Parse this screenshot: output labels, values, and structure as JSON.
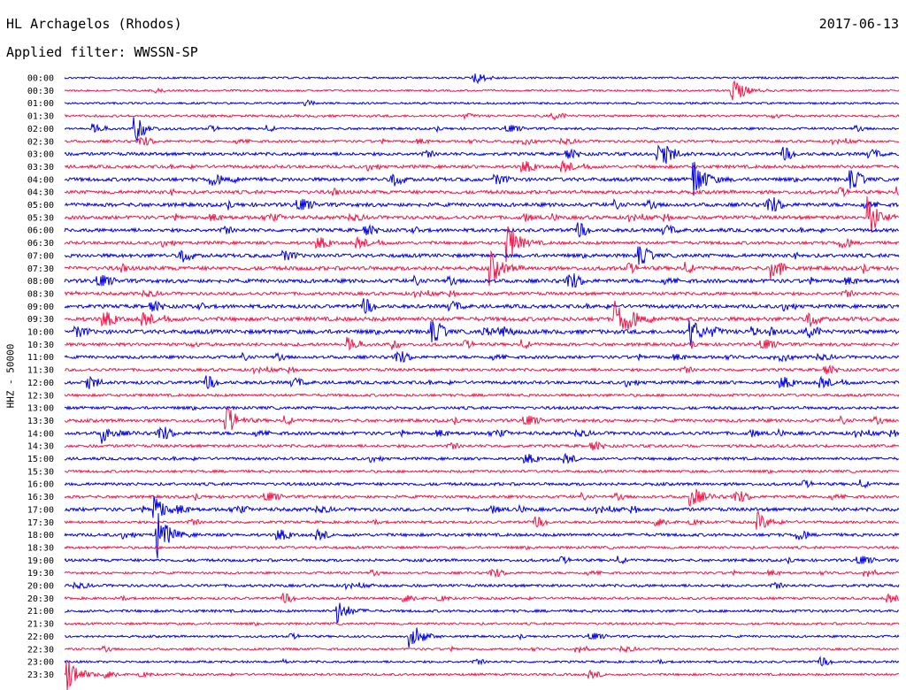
{
  "header": {
    "title": "HL Archagelos (Rhodos)",
    "date": "2017-06-13",
    "filter": "Applied filter: WWSSN-SP"
  },
  "chart_data": {
    "type": "line",
    "title": "HL Archagelos (Rhodos)",
    "ylabel": "HHZ - 50000",
    "colors": [
      "#0000e6",
      "#f0194a"
    ],
    "time_labels": [
      "00:00",
      "00:30",
      "01:00",
      "01:30",
      "02:00",
      "02:30",
      "03:00",
      "03:30",
      "04:00",
      "04:30",
      "05:00",
      "05:30",
      "06:00",
      "06:30",
      "07:00",
      "07:30",
      "08:00",
      "08:30",
      "09:00",
      "09:30",
      "10:00",
      "10:30",
      "11:00",
      "11:30",
      "12:00",
      "12:30",
      "13:00",
      "13:30",
      "14:00",
      "14:30",
      "15:00",
      "15:30",
      "16:00",
      "16:30",
      "17:00",
      "17:30",
      "18:00",
      "18:30",
      "19:00",
      "19:30",
      "20:00",
      "20:30",
      "21:00",
      "21:30",
      "22:00",
      "22:30",
      "23:00",
      "23:30"
    ],
    "trace_minutes": 30,
    "activity": [
      0.15,
      0.15,
      0.2,
      0.3,
      0.3,
      0.35,
      0.6,
      0.6,
      0.75,
      0.7,
      0.8,
      0.75,
      0.7,
      0.6,
      0.75,
      0.85,
      0.8,
      0.6,
      0.75,
      0.9,
      0.9,
      0.6,
      0.55,
      0.5,
      0.6,
      0.45,
      0.5,
      0.6,
      0.65,
      0.5,
      0.45,
      0.4,
      0.5,
      0.5,
      0.7,
      0.4,
      0.55,
      0.4,
      0.45,
      0.3,
      0.45,
      0.35,
      0.4,
      0.3,
      0.25,
      0.25,
      0.25,
      0.3
    ],
    "events": [
      {
        "trace": 0,
        "t": 14.7,
        "amp": 8
      },
      {
        "trace": 1,
        "t": 24.0,
        "amp": 18
      },
      {
        "trace": 4,
        "t": 2.5,
        "amp": 14
      },
      {
        "trace": 6,
        "t": 21.3,
        "amp": 10
      },
      {
        "trace": 8,
        "t": 22.6,
        "amp": 26
      },
      {
        "trace": 11,
        "t": 28.9,
        "amp": 22
      },
      {
        "trace": 13,
        "t": 15.9,
        "amp": 24
      },
      {
        "trace": 15,
        "t": 15.3,
        "amp": 20
      },
      {
        "trace": 19,
        "t": 19.8,
        "amp": 20
      },
      {
        "trace": 20,
        "t": 22.5,
        "amp": 16
      },
      {
        "trace": 27,
        "t": 5.8,
        "amp": 14
      },
      {
        "trace": 28,
        "t": 1.3,
        "amp": 12
      },
      {
        "trace": 33,
        "t": 22.5,
        "amp": 14
      },
      {
        "trace": 34,
        "t": 3.2,
        "amp": 18
      },
      {
        "trace": 35,
        "t": 24.9,
        "amp": 12
      },
      {
        "trace": 36,
        "t": 3.3,
        "amp": 30
      },
      {
        "trace": 42,
        "t": 9.8,
        "amp": 14
      },
      {
        "trace": 44,
        "t": 12.4,
        "amp": 12
      },
      {
        "trace": 47,
        "t": 0.1,
        "amp": 22
      }
    ]
  }
}
